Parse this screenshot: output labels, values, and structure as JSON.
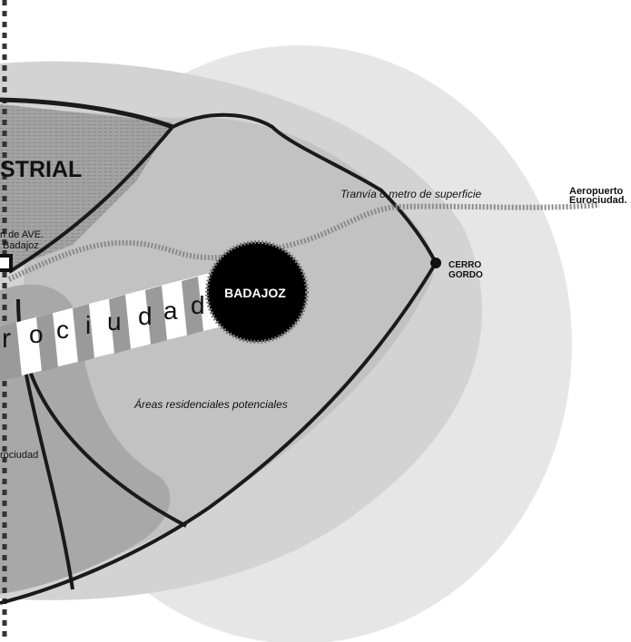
{
  "labels": {
    "industrial_fragment": "STRIAL",
    "tram_line": "Tranvía o metro de superficie",
    "airport_line1": "Aeropuerto",
    "airport_line2": "Eurociudad.",
    "station_line1": "n de AVE.",
    "station_line2": "Badajoz",
    "cerro_line1": "CERRO",
    "cerro_line2": "GORDO",
    "city": "BADAJOZ",
    "residential": "Áreas residenciales potenciales",
    "eurociudad_small": "rociudad",
    "eurociudad_band": [
      "r",
      "o",
      "c",
      "i",
      "u",
      "d",
      "a",
      "d"
    ]
  },
  "colors": {
    "background": "#ffffff",
    "outer_zone": "#e4e4e4",
    "mid_zone": "#cdcdcd",
    "inner_zone": "#bdbdbd",
    "dark_zone": "#a6a6a6",
    "industrial_texture": "#9e9e9e",
    "roads": "#1a1a1a",
    "tram_dots": "#8a8a8a",
    "city_fill": "#000000"
  },
  "icons": [
    "city-marker-icon",
    "cerro-gordo-point-icon",
    "station-square-icon"
  ]
}
